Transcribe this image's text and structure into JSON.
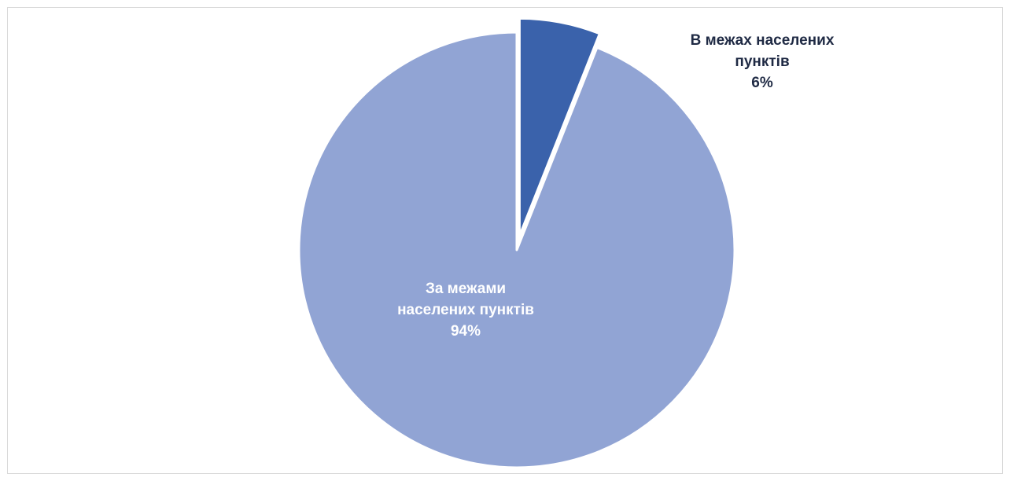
{
  "chart_data": {
    "type": "pie",
    "title": "",
    "start_angle_deg": 0,
    "direction": "clockwise",
    "slices": [
      {
        "name": "В межах населених пунктів",
        "label_lines": [
          "В межах населених",
          "пунктів"
        ],
        "value": 6,
        "percent_label": "6%",
        "color": "#3a62ab",
        "exploded": true,
        "label_color": "#1f2a44"
      },
      {
        "name": "За межами населених пунктів",
        "label_lines": [
          "За межами",
          "населених пунктів"
        ],
        "value": 94,
        "percent_label": "94%",
        "color": "#91a4d4",
        "exploded": false,
        "label_color": "#ffffff"
      }
    ],
    "legend": "none"
  }
}
